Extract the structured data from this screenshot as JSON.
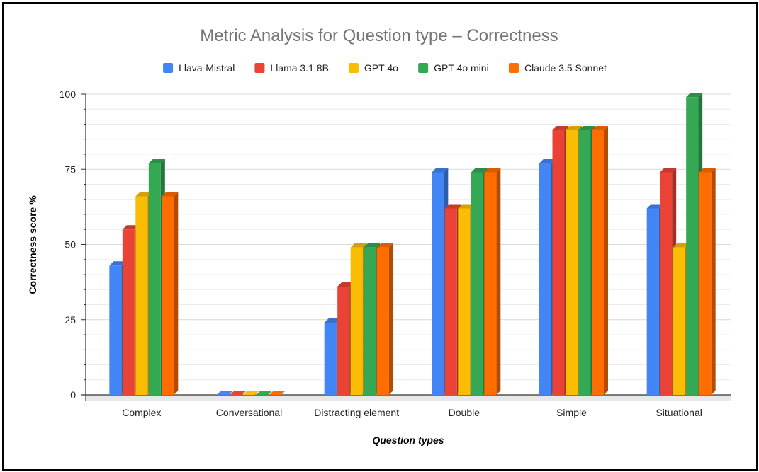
{
  "chart_data": {
    "type": "bar",
    "title": "Metric Analysis for Question type – Correctness",
    "xlabel": "Question types",
    "ylabel": "Correctness score %",
    "ylim": [
      0,
      100
    ],
    "yticks": [
      0,
      25,
      50,
      75,
      100
    ],
    "grid": true,
    "legend_position": "top",
    "categories": [
      "Complex",
      "Conversational",
      "Distracting element",
      "Double",
      "Simple",
      "Situational"
    ],
    "series": [
      {
        "name": "Llava-Mistral",
        "color": "#4285f4",
        "values": [
          43,
          0,
          24,
          74,
          77,
          62
        ]
      },
      {
        "name": "Llama 3.1 8B",
        "color": "#ea4335",
        "values": [
          55,
          0,
          36,
          62,
          88,
          74
        ]
      },
      {
        "name": "GPT 4o",
        "color": "#fbbc04",
        "values": [
          66,
          0,
          49,
          62,
          88,
          49
        ]
      },
      {
        "name": "GPT 4o mini",
        "color": "#34a853",
        "values": [
          77,
          0,
          49,
          74,
          88,
          99
        ]
      },
      {
        "name": "Claude 3.5 Sonnet",
        "color": "#ff6d01",
        "values": [
          66,
          0,
          49,
          74,
          88,
          74
        ]
      }
    ]
  }
}
